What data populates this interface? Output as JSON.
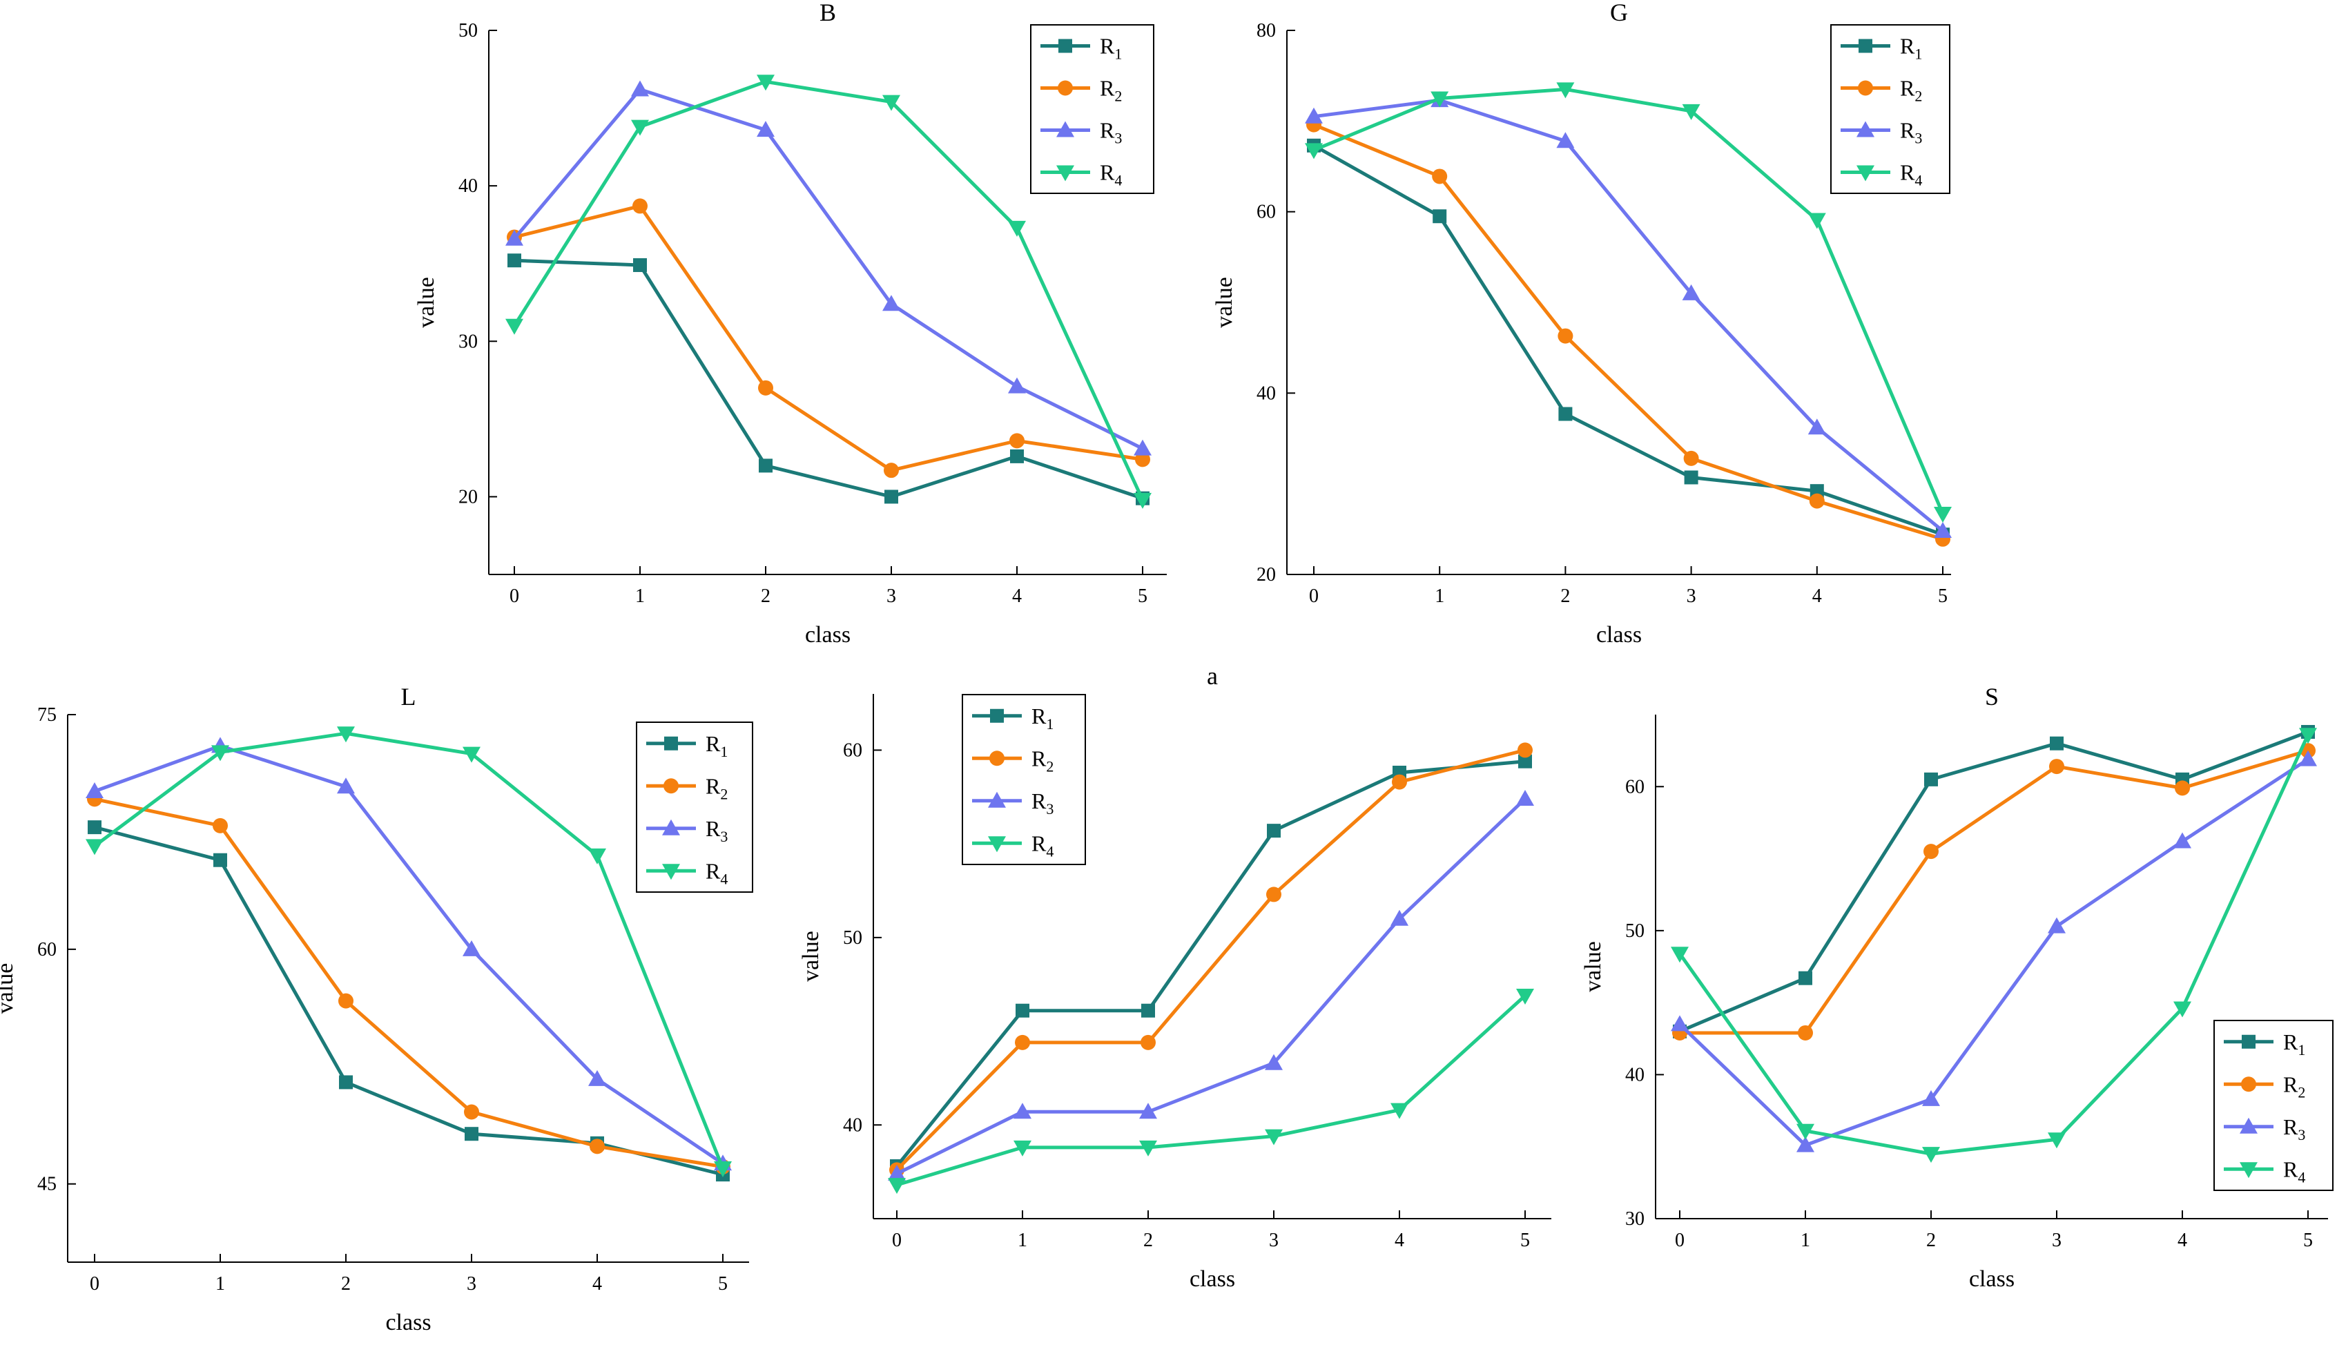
{
  "colors": {
    "R1": "#1b7a78",
    "R2": "#f5800e",
    "R3": "#6e75ef",
    "R4": "#21cc8a"
  },
  "chart_data": [
    {
      "type": "line",
      "title": "B",
      "xlabel": "class",
      "ylabel": "value",
      "categories": [
        "0",
        "1",
        "2",
        "3",
        "4",
        "5"
      ],
      "ylim": [
        15,
        50
      ],
      "yticks": [
        "20",
        "30",
        "40",
        "50"
      ],
      "legend_position": "top-right",
      "series": [
        {
          "name": "R1",
          "label_main": "R",
          "label_sub": "1",
          "marker": "square",
          "values": [
            35.2,
            34.9,
            22.0,
            20.0,
            22.6,
            19.9
          ]
        },
        {
          "name": "R2",
          "label_main": "R",
          "label_sub": "2",
          "marker": "circle",
          "values": [
            36.7,
            38.7,
            27.0,
            21.7,
            23.6,
            22.4
          ]
        },
        {
          "name": "R3",
          "label_main": "R",
          "label_sub": "3",
          "marker": "triangle-up",
          "values": [
            36.6,
            46.2,
            43.6,
            32.4,
            27.1,
            23.1
          ]
        },
        {
          "name": "R4",
          "label_main": "R",
          "label_sub": "4",
          "marker": "triangle-down",
          "values": [
            31.0,
            43.8,
            46.7,
            45.4,
            37.3,
            19.8
          ]
        }
      ]
    },
    {
      "type": "line",
      "title": "G",
      "xlabel": "class",
      "ylabel": "value",
      "categories": [
        "0",
        "1",
        "2",
        "3",
        "4",
        "5"
      ],
      "ylim": [
        20,
        80
      ],
      "yticks": [
        "20",
        "40",
        "60",
        "80"
      ],
      "legend_position": "top-right",
      "series": [
        {
          "name": "R1",
          "label_main": "R",
          "label_sub": "1",
          "marker": "square",
          "values": [
            67.3,
            59.5,
            37.7,
            30.7,
            29.2,
            24.4
          ]
        },
        {
          "name": "R2",
          "label_main": "R",
          "label_sub": "2",
          "marker": "circle",
          "values": [
            69.6,
            63.9,
            46.3,
            32.8,
            28.1,
            23.9
          ]
        },
        {
          "name": "R3",
          "label_main": "R",
          "label_sub": "3",
          "marker": "triangle-up",
          "values": [
            70.5,
            72.3,
            67.8,
            51.0,
            36.2,
            24.8
          ]
        },
        {
          "name": "R4",
          "label_main": "R",
          "label_sub": "4",
          "marker": "triangle-down",
          "values": [
            66.8,
            72.5,
            73.5,
            71.1,
            59.1,
            26.7
          ]
        }
      ]
    },
    {
      "type": "line",
      "title": "L",
      "xlabel": "class",
      "ylabel": "value",
      "categories": [
        "0",
        "1",
        "2",
        "3",
        "4",
        "5"
      ],
      "ylim": [
        40,
        75
      ],
      "yticks": [
        "45",
        "60",
        "75"
      ],
      "legend_position": "top-right",
      "series": [
        {
          "name": "R1",
          "label_main": "R",
          "label_sub": "1",
          "marker": "square",
          "values": [
            67.8,
            65.7,
            51.5,
            48.2,
            47.6,
            45.6
          ]
        },
        {
          "name": "R2",
          "label_main": "R",
          "label_sub": "2",
          "marker": "circle",
          "values": [
            69.6,
            67.9,
            56.7,
            49.6,
            47.4,
            46.1
          ]
        },
        {
          "name": "R3",
          "label_main": "R",
          "label_sub": "3",
          "marker": "triangle-up",
          "values": [
            70.1,
            73.0,
            70.4,
            60.0,
            51.7,
            46.3
          ]
        },
        {
          "name": "R4",
          "label_main": "R",
          "label_sub": "4",
          "marker": "triangle-down",
          "values": [
            66.6,
            72.6,
            73.8,
            72.5,
            66.0,
            46.0
          ]
        }
      ]
    },
    {
      "type": "line",
      "title": "a",
      "xlabel": "class",
      "ylabel": "value",
      "categories": [
        "0",
        "1",
        "2",
        "3",
        "4",
        "5"
      ],
      "ylim": [
        35,
        63
      ],
      "yticks": [
        "40",
        "50",
        "60"
      ],
      "legend_position": "top-left",
      "series": [
        {
          "name": "R1",
          "label_main": "R",
          "label_sub": "1",
          "marker": "square",
          "values": [
            37.8,
            46.1,
            46.1,
            55.7,
            58.8,
            59.4
          ]
        },
        {
          "name": "R2",
          "label_main": "R",
          "label_sub": "2",
          "marker": "circle",
          "values": [
            37.6,
            44.4,
            44.4,
            52.3,
            58.3,
            60.0
          ]
        },
        {
          "name": "R3",
          "label_main": "R",
          "label_sub": "3",
          "marker": "triangle-up",
          "values": [
            37.4,
            40.7,
            40.7,
            43.3,
            51.0,
            57.4
          ]
        },
        {
          "name": "R4",
          "label_main": "R",
          "label_sub": "4",
          "marker": "triangle-down",
          "values": [
            36.8,
            38.8,
            38.8,
            39.4,
            40.8,
            46.9
          ]
        }
      ]
    },
    {
      "type": "line",
      "title": "S",
      "xlabel": "class",
      "ylabel": "value",
      "categories": [
        "0",
        "1",
        "2",
        "3",
        "4",
        "5"
      ],
      "ylim": [
        30,
        65
      ],
      "yticks": [
        "30",
        "40",
        "50",
        "60"
      ],
      "legend_position": "bottom-right",
      "series": [
        {
          "name": "R1",
          "label_main": "R",
          "label_sub": "1",
          "marker": "square",
          "values": [
            43.0,
            46.7,
            60.5,
            63.0,
            60.5,
            63.8
          ]
        },
        {
          "name": "R2",
          "label_main": "R",
          "label_sub": "2",
          "marker": "circle",
          "values": [
            42.9,
            42.9,
            55.5,
            61.4,
            59.9,
            62.5
          ]
        },
        {
          "name": "R3",
          "label_main": "R",
          "label_sub": "3",
          "marker": "triangle-up",
          "values": [
            43.5,
            35.1,
            38.3,
            50.3,
            56.2,
            61.9
          ]
        },
        {
          "name": "R4",
          "label_main": "R",
          "label_sub": "4",
          "marker": "triangle-down",
          "values": [
            48.4,
            36.1,
            34.5,
            35.5,
            44.6,
            63.6
          ]
        }
      ]
    }
  ]
}
